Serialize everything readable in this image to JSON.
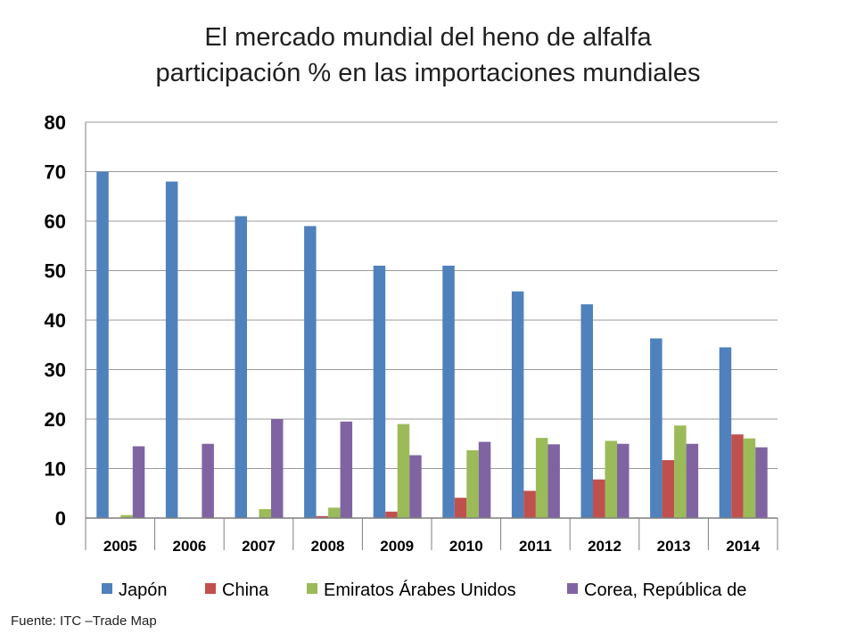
{
  "title": {
    "line1": "El mercado mundial del heno de alfalfa",
    "line2": "participación % en las importaciones mundiales"
  },
  "source": "Fuente: ITC –Trade Map",
  "chart_data": {
    "type": "bar",
    "title": "El mercado mundial del heno de alfalfa participación % en las importaciones mundiales",
    "xlabel": "",
    "ylabel": "",
    "ylim": [
      0,
      80
    ],
    "yticks": [
      0,
      10,
      20,
      30,
      40,
      50,
      60,
      70,
      80
    ],
    "grid": true,
    "legend_position": "bottom",
    "categories": [
      "2005",
      "2006",
      "2007",
      "2008",
      "2009",
      "2010",
      "2011",
      "2012",
      "2013",
      "2014"
    ],
    "series": [
      {
        "name": "Japón",
        "color": "#4f81bd",
        "values": [
          70,
          68,
          61,
          59,
          51,
          51,
          45.8,
          43.2,
          36.3,
          34.5
        ]
      },
      {
        "name": "China",
        "color": "#c0504d",
        "values": [
          0,
          0,
          0,
          0.4,
          1.3,
          4.1,
          5.5,
          7.8,
          11.7,
          16.9
        ]
      },
      {
        "name": "Emiratos Árabes Unidos",
        "color": "#9bbb59",
        "values": [
          0.6,
          0,
          1.8,
          2.1,
          19,
          13.7,
          16.2,
          15.6,
          18.7,
          16.1
        ]
      },
      {
        "name": "Corea, República de",
        "color": "#8064a2",
        "values": [
          14.5,
          15,
          20,
          19.5,
          12.7,
          15.4,
          14.9,
          15,
          15,
          14.3
        ]
      }
    ]
  }
}
